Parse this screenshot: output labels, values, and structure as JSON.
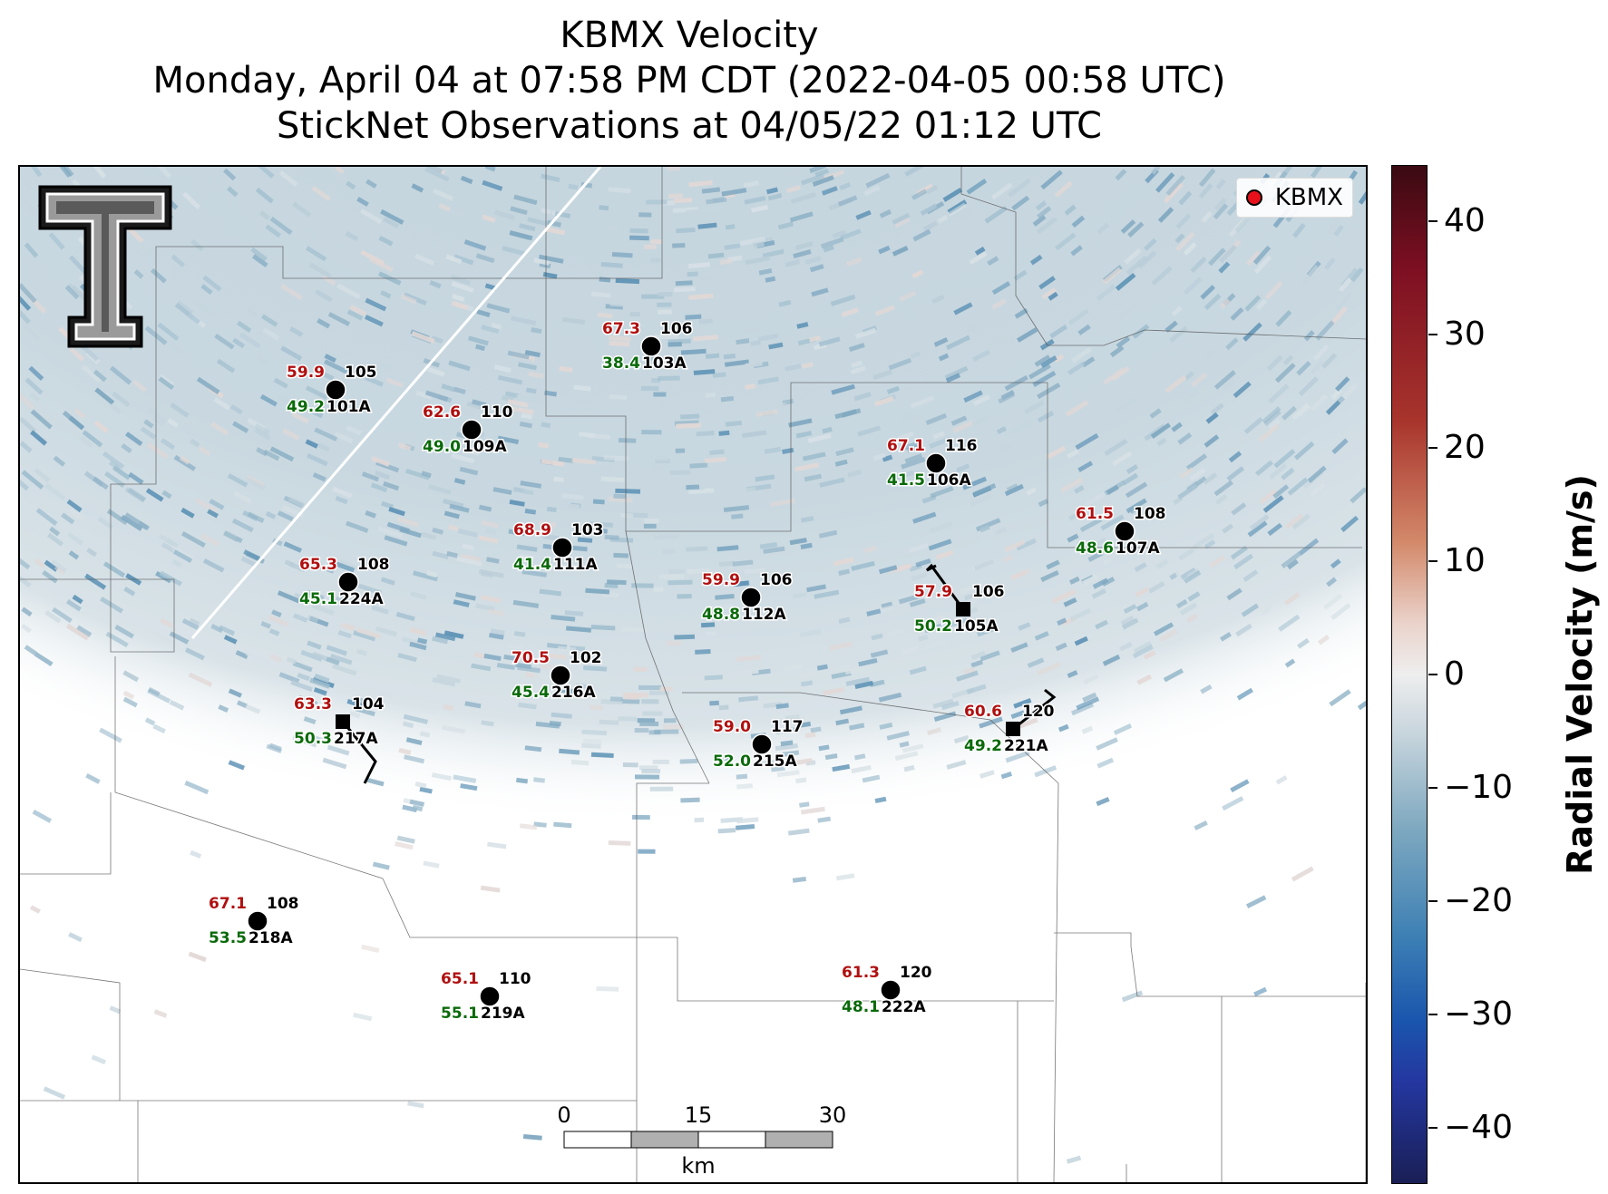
{
  "title": {
    "line1": "KBMX Velocity",
    "line2": "Monday, April 04 at 07:58 PM CDT (2022-04-05 00:58 UTC)",
    "line3": "StickNet Observations at 04/05/22 01:12 UTC"
  },
  "legend": {
    "label": "KBMX",
    "marker_color": "#e8101a"
  },
  "colorbar": {
    "title": "Radial Velocity (m/s)",
    "ticks": [
      "40",
      "30",
      "20",
      "10",
      "0",
      "−10",
      "−20",
      "−30",
      "−40"
    ],
    "range": [
      -45,
      45
    ]
  },
  "scale_bar": {
    "labels": [
      "0",
      "15",
      "30"
    ],
    "unit": "km"
  },
  "stations": [
    {
      "id": "106",
      "probe": "103A",
      "red": "67.3",
      "green": "38.4",
      "marker": "circle"
    },
    {
      "id": "105",
      "probe": "101A",
      "red": "59.9",
      "green": "49.2",
      "marker": "circle"
    },
    {
      "id": "110",
      "probe": "109A",
      "red": "62.6",
      "green": "49.0",
      "marker": "circle"
    },
    {
      "id": "116",
      "probe": "106A",
      "red": "67.1",
      "green": "41.5",
      "marker": "circle"
    },
    {
      "id": "108",
      "probe": "107A",
      "red": "61.5",
      "green": "48.6",
      "marker": "circle"
    },
    {
      "id": "103",
      "probe": "111A",
      "red": "68.9",
      "green": "41.4",
      "marker": "circle"
    },
    {
      "id": "108",
      "probe": "224A",
      "red": "65.3",
      "green": "45.1",
      "marker": "circle"
    },
    {
      "id": "106",
      "probe": "112A",
      "red": "59.9",
      "green": "48.8",
      "marker": "circle"
    },
    {
      "id": "106",
      "probe": "105A",
      "red": "57.9",
      "green": "50.2",
      "marker": "square"
    },
    {
      "id": "102",
      "probe": "216A",
      "red": "70.5",
      "green": "45.4",
      "marker": "circle"
    },
    {
      "id": "104",
      "probe": "217A",
      "red": "63.3",
      "green": "50.3",
      "marker": "square"
    },
    {
      "id": "117",
      "probe": "215A",
      "red": "59.0",
      "green": "52.0",
      "marker": "circle"
    },
    {
      "id": "120",
      "probe": "221A",
      "red": "60.6",
      "green": "49.2",
      "marker": "square"
    },
    {
      "id": "108",
      "probe": "218A",
      "red": "67.1",
      "green": "53.5",
      "marker": "circle"
    },
    {
      "id": "110",
      "probe": "219A",
      "red": "65.1",
      "green": "55.1",
      "marker": "circle"
    },
    {
      "id": "120",
      "probe": "222A",
      "red": "61.3",
      "green": "48.1",
      "marker": "circle"
    }
  ],
  "colors": {
    "red_value": "#b01010",
    "green_value": "#0a6a0a"
  }
}
